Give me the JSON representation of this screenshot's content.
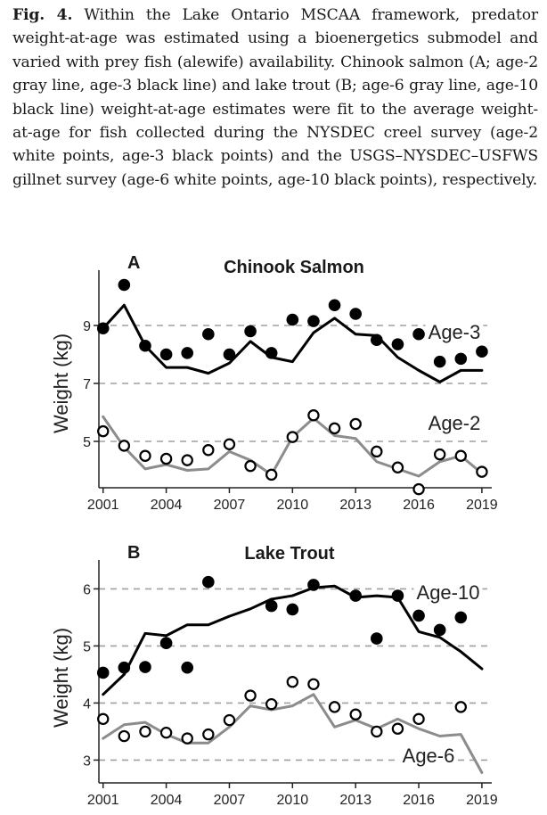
{
  "caption": {
    "label": "Fig. 4.",
    "text": "Within the Lake Ontario MSCAA framework, predator weight-at-age was estimated using a bioenergetics submodel and varied with prey fish (alewife) availability. Chinook salmon (A; age-2 gray line, age-3 black line) and lake trout (B; age-6 gray line, age-10 black line) weight-at-age estimates were fit to the average weight-at-age for fish collected during the NYSDEC creel survey (age-2 white points, age-3 black points) and the USGS–NYSDEC–USFWS gillnet survey (age-6 white points, age-10 black points), respectively."
  },
  "colors": {
    "black": "#000000",
    "gray": "#8c8c8c",
    "grid": "#a0a0a0"
  },
  "chart_data": [
    {
      "type": "line",
      "panel": "A",
      "title": "Chinook Salmon",
      "ylabel": "Weight (kg)",
      "xlabel": "",
      "xlim": [
        2000.8,
        2019.3
      ],
      "ylim": [
        3.4,
        10.6
      ],
      "xticks": [
        2001,
        2004,
        2007,
        2010,
        2013,
        2016,
        2019
      ],
      "yticks": [
        5,
        7,
        9
      ],
      "grid": "horizontal dashed",
      "x": [
        2001,
        2002,
        2003,
        2004,
        2005,
        2006,
        2007,
        2008,
        2009,
        2010,
        2011,
        2012,
        2013,
        2014,
        2015,
        2016,
        2017,
        2018,
        2019
      ],
      "series": [
        {
          "name": "Age-3",
          "kind": "line",
          "color": "#000000",
          "values": [
            8.9,
            9.7,
            8.3,
            7.55,
            7.55,
            7.35,
            7.7,
            8.45,
            7.9,
            7.75,
            8.75,
            9.25,
            8.7,
            8.65,
            7.9,
            7.45,
            7.05,
            7.45,
            7.45
          ]
        },
        {
          "name": "Age-2",
          "kind": "line",
          "color": "#8c8c8c",
          "values": [
            5.85,
            4.8,
            4.05,
            4.2,
            4.0,
            4.05,
            4.65,
            4.35,
            3.85,
            5.15,
            5.8,
            5.2,
            5.1,
            4.3,
            4.05,
            3.8,
            4.3,
            4.5,
            3.9
          ]
        },
        {
          "name": "Age-3",
          "kind": "points",
          "fill": "#000000",
          "values": [
            8.9,
            10.4,
            8.3,
            8.0,
            8.05,
            8.7,
            8.0,
            8.8,
            8.05,
            9.2,
            9.15,
            9.7,
            9.4,
            8.5,
            8.35,
            8.7,
            7.75,
            7.85,
            8.1
          ]
        },
        {
          "name": "Age-2",
          "kind": "points",
          "fill": "#ffffff",
          "values": [
            5.35,
            4.85,
            4.5,
            4.4,
            4.35,
            4.7,
            4.9,
            4.15,
            3.85,
            5.15,
            5.9,
            5.45,
            5.6,
            4.65,
            4.1,
            3.35,
            4.55,
            4.5,
            3.95
          ]
        }
      ],
      "annotations": [
        {
          "text": "Age-3",
          "series": "Age-3"
        },
        {
          "text": "Age-2",
          "series": "Age-2"
        }
      ]
    },
    {
      "type": "line",
      "panel": "B",
      "title": "Lake Trout",
      "ylabel": "Weight (kg)",
      "xlabel": "",
      "xlim": [
        2000.8,
        2019.3
      ],
      "ylim": [
        2.6,
        6.35
      ],
      "xticks": [
        2001,
        2004,
        2007,
        2010,
        2013,
        2016,
        2019
      ],
      "yticks": [
        3,
        4,
        5,
        6
      ],
      "grid": "horizontal dashed",
      "x": [
        2001,
        2002,
        2003,
        2004,
        2005,
        2006,
        2007,
        2008,
        2009,
        2010,
        2011,
        2012,
        2013,
        2014,
        2015,
        2016,
        2017,
        2018,
        2019
      ],
      "series": [
        {
          "name": "Age-10",
          "kind": "line",
          "color": "#000000",
          "values": [
            4.15,
            4.5,
            5.22,
            5.18,
            5.37,
            5.37,
            5.52,
            5.65,
            5.82,
            5.88,
            6.02,
            6.05,
            5.85,
            5.88,
            5.85,
            5.25,
            5.15,
            4.9,
            4.6
          ]
        },
        {
          "name": "Age-6",
          "kind": "line",
          "color": "#8c8c8c",
          "values": [
            3.38,
            3.62,
            3.66,
            3.45,
            3.3,
            3.3,
            3.58,
            3.95,
            3.88,
            3.95,
            4.15,
            3.58,
            3.7,
            3.55,
            3.72,
            3.55,
            3.42,
            3.45,
            2.78
          ]
        },
        {
          "name": "Age-10",
          "kind": "points",
          "fill": "#000000",
          "values": [
            4.53,
            4.62,
            4.63,
            5.05,
            4.62,
            6.12,
            null,
            null,
            5.7,
            5.64,
            6.07,
            null,
            5.88,
            5.13,
            5.88,
            5.53,
            5.28,
            5.5,
            null
          ]
        },
        {
          "name": "Age-6",
          "kind": "points",
          "fill": "#ffffff",
          "values": [
            3.72,
            3.42,
            3.5,
            3.48,
            3.38,
            3.45,
            3.7,
            4.13,
            3.98,
            4.37,
            4.33,
            3.93,
            3.8,
            3.5,
            3.55,
            3.72,
            null,
            3.93,
            null
          ]
        }
      ],
      "annotations": [
        {
          "text": "Age-10",
          "series": "Age-10"
        },
        {
          "text": "Age-6",
          "series": "Age-6"
        }
      ]
    }
  ]
}
